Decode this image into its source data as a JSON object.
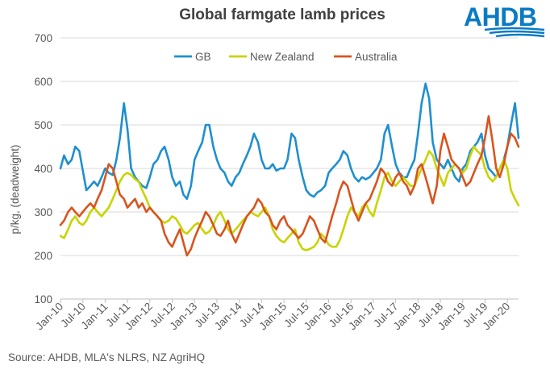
{
  "header": {
    "title": "Global farmgate lamb prices"
  },
  "logo": {
    "text": "AHDB",
    "color": "#0a7bc3"
  },
  "source": "Source: AHDB, MLA's NLRS, NZ AgriHQ",
  "chart_data": {
    "type": "line",
    "title": "Global farmgate lamb prices",
    "xlabel": "",
    "ylabel": "p/kg, (deadweight)",
    "ylim": [
      100,
      700
    ],
    "yticks": [
      100,
      200,
      300,
      400,
      500,
      600,
      700
    ],
    "x_tick_labels": [
      "Jan-10",
      "Jul-10",
      "Jan-11",
      "Jul-11",
      "Jan-12",
      "Jul-12",
      "Jan-13",
      "Jul-13",
      "Jan-14",
      "Jul-14",
      "Jan-15",
      "Jul-15",
      "Jan-16",
      "Jul-16",
      "Jan-17",
      "Jul-17",
      "Jan-18",
      "Jul-18",
      "Jan-19",
      "Jul-19",
      "Jan-20"
    ],
    "x_range": [
      "2010-01",
      "2020-04"
    ],
    "grid": true,
    "legend_position": "top",
    "series": [
      {
        "name": "GB",
        "color": "#1f8fcf",
        "x": [
          2010.0,
          2010.08,
          2010.17,
          2010.25,
          2010.33,
          2010.42,
          2010.5,
          2010.58,
          2010.67,
          2010.75,
          2010.83,
          2010.92,
          2011.0,
          2011.08,
          2011.17,
          2011.25,
          2011.33,
          2011.42,
          2011.5,
          2011.58,
          2011.67,
          2011.75,
          2011.83,
          2011.92,
          2012.0,
          2012.08,
          2012.17,
          2012.25,
          2012.33,
          2012.42,
          2012.5,
          2012.58,
          2012.67,
          2012.75,
          2012.83,
          2012.92,
          2013.0,
          2013.08,
          2013.17,
          2013.25,
          2013.33,
          2013.42,
          2013.5,
          2013.58,
          2013.67,
          2013.75,
          2013.83,
          2013.92,
          2014.0,
          2014.08,
          2014.17,
          2014.25,
          2014.33,
          2014.42,
          2014.5,
          2014.58,
          2014.67,
          2014.75,
          2014.83,
          2014.92,
          2015.0,
          2015.08,
          2015.17,
          2015.25,
          2015.33,
          2015.42,
          2015.5,
          2015.58,
          2015.67,
          2015.75,
          2015.83,
          2015.92,
          2016.0,
          2016.08,
          2016.17,
          2016.25,
          2016.33,
          2016.42,
          2016.5,
          2016.58,
          2016.67,
          2016.75,
          2016.83,
          2016.92,
          2017.0,
          2017.08,
          2017.17,
          2017.25,
          2017.33,
          2017.42,
          2017.5,
          2017.58,
          2017.67,
          2017.75,
          2017.83,
          2017.92,
          2018.0,
          2018.08,
          2018.17,
          2018.25,
          2018.33,
          2018.42,
          2018.5,
          2018.58,
          2018.67,
          2018.75,
          2018.83,
          2018.92,
          2019.0,
          2019.08,
          2019.17,
          2019.25,
          2019.33,
          2019.42,
          2019.5,
          2019.58,
          2019.67,
          2019.75,
          2019.83,
          2019.92,
          2020.0,
          2020.08,
          2020.17,
          2020.25
        ],
        "values": [
          400,
          430,
          410,
          420,
          450,
          440,
          395,
          350,
          360,
          370,
          360,
          380,
          400,
          390,
          385,
          420,
          470,
          550,
          490,
          400,
          380,
          370,
          360,
          355,
          380,
          410,
          420,
          440,
          450,
          420,
          380,
          360,
          370,
          340,
          330,
          360,
          420,
          440,
          460,
          500,
          500,
          450,
          420,
          400,
          390,
          370,
          360,
          380,
          390,
          410,
          430,
          450,
          480,
          460,
          420,
          400,
          400,
          410,
          395,
          400,
          400,
          420,
          480,
          470,
          420,
          380,
          350,
          340,
          335,
          345,
          350,
          360,
          390,
          400,
          410,
          420,
          440,
          430,
          400,
          380,
          370,
          380,
          375,
          380,
          390,
          400,
          420,
          480,
          500,
          450,
          410,
          390,
          380,
          380,
          400,
          420,
          480,
          550,
          595,
          560,
          460,
          420,
          410,
          400,
          420,
          400,
          380,
          370,
          400,
          410,
          440,
          450,
          460,
          480,
          430,
          400,
          390,
          380,
          400,
          420,
          450,
          500,
          550,
          470
        ]
      },
      {
        "name": "New Zealand",
        "color": "#c8d400",
        "x": [
          2010.0,
          2010.08,
          2010.17,
          2010.25,
          2010.33,
          2010.42,
          2010.5,
          2010.58,
          2010.67,
          2010.75,
          2010.83,
          2010.92,
          2011.0,
          2011.08,
          2011.17,
          2011.25,
          2011.33,
          2011.42,
          2011.5,
          2011.58,
          2011.67,
          2011.75,
          2011.83,
          2011.92,
          2012.0,
          2012.08,
          2012.17,
          2012.25,
          2012.33,
          2012.42,
          2012.5,
          2012.58,
          2012.67,
          2012.75,
          2012.83,
          2012.92,
          2013.0,
          2013.08,
          2013.17,
          2013.25,
          2013.33,
          2013.42,
          2013.5,
          2013.58,
          2013.67,
          2013.75,
          2013.83,
          2013.92,
          2014.0,
          2014.08,
          2014.17,
          2014.25,
          2014.33,
          2014.42,
          2014.5,
          2014.58,
          2014.67,
          2014.75,
          2014.83,
          2014.92,
          2015.0,
          2015.08,
          2015.17,
          2015.25,
          2015.33,
          2015.42,
          2015.5,
          2015.58,
          2015.67,
          2015.75,
          2015.83,
          2015.92,
          2016.0,
          2016.08,
          2016.17,
          2016.25,
          2016.33,
          2016.42,
          2016.5,
          2016.58,
          2016.67,
          2016.75,
          2016.83,
          2016.92,
          2017.0,
          2017.08,
          2017.17,
          2017.25,
          2017.33,
          2017.42,
          2017.5,
          2017.58,
          2017.67,
          2017.75,
          2017.83,
          2017.92,
          2018.0,
          2018.08,
          2018.17,
          2018.25,
          2018.33,
          2018.42,
          2018.5,
          2018.58,
          2018.67,
          2018.75,
          2018.83,
          2018.92,
          2019.0,
          2019.08,
          2019.17,
          2019.25,
          2019.33,
          2019.42,
          2019.5,
          2019.58,
          2019.67,
          2019.75,
          2019.83,
          2019.92,
          2020.0,
          2020.08,
          2020.17,
          2020.25
        ],
        "values": [
          245,
          240,
          260,
          280,
          290,
          275,
          270,
          280,
          300,
          310,
          300,
          290,
          300,
          310,
          330,
          350,
          370,
          385,
          390,
          385,
          375,
          370,
          350,
          330,
          310,
          300,
          290,
          280,
          275,
          280,
          290,
          285,
          270,
          255,
          250,
          260,
          270,
          275,
          260,
          250,
          255,
          270,
          290,
          300,
          280,
          260,
          250,
          260,
          270,
          280,
          290,
          300,
          295,
          290,
          300,
          310,
          290,
          260,
          245,
          235,
          230,
          240,
          250,
          260,
          230,
          215,
          212,
          215,
          220,
          230,
          250,
          240,
          225,
          220,
          220,
          235,
          260,
          290,
          310,
          300,
          290,
          310,
          320,
          300,
          290,
          320,
          350,
          380,
          390,
          370,
          360,
          370,
          380,
          370,
          360,
          360,
          380,
          400,
          420,
          440,
          430,
          400,
          380,
          360,
          390,
          400,
          410,
          400,
          390,
          400,
          430,
          450,
          440,
          430,
          400,
          380,
          370,
          380,
          400,
          420,
          400,
          350,
          330,
          315
        ]
      },
      {
        "name": "Australia",
        "color": "#d9541e",
        "x": [
          2010.0,
          2010.08,
          2010.17,
          2010.25,
          2010.33,
          2010.42,
          2010.5,
          2010.58,
          2010.67,
          2010.75,
          2010.83,
          2010.92,
          2011.0,
          2011.08,
          2011.17,
          2011.25,
          2011.33,
          2011.42,
          2011.5,
          2011.58,
          2011.67,
          2011.75,
          2011.83,
          2011.92,
          2012.0,
          2012.08,
          2012.17,
          2012.25,
          2012.33,
          2012.42,
          2012.5,
          2012.58,
          2012.67,
          2012.75,
          2012.83,
          2012.92,
          2013.0,
          2013.08,
          2013.17,
          2013.25,
          2013.33,
          2013.42,
          2013.5,
          2013.58,
          2013.67,
          2013.75,
          2013.83,
          2013.92,
          2014.0,
          2014.08,
          2014.17,
          2014.25,
          2014.33,
          2014.42,
          2014.5,
          2014.58,
          2014.67,
          2014.75,
          2014.83,
          2014.92,
          2015.0,
          2015.08,
          2015.17,
          2015.25,
          2015.33,
          2015.42,
          2015.5,
          2015.58,
          2015.67,
          2015.75,
          2015.83,
          2015.92,
          2016.0,
          2016.08,
          2016.17,
          2016.25,
          2016.33,
          2016.42,
          2016.5,
          2016.58,
          2016.67,
          2016.75,
          2016.83,
          2016.92,
          2017.0,
          2017.08,
          2017.17,
          2017.25,
          2017.33,
          2017.42,
          2017.5,
          2017.58,
          2017.67,
          2017.75,
          2017.83,
          2017.92,
          2018.0,
          2018.08,
          2018.17,
          2018.25,
          2018.33,
          2018.42,
          2018.5,
          2018.58,
          2018.67,
          2018.75,
          2018.83,
          2018.92,
          2019.0,
          2019.08,
          2019.17,
          2019.25,
          2019.33,
          2019.42,
          2019.5,
          2019.58,
          2019.67,
          2019.75,
          2019.83,
          2019.92,
          2020.0,
          2020.08,
          2020.17,
          2020.25
        ],
        "values": [
          270,
          280,
          300,
          310,
          300,
          290,
          300,
          310,
          320,
          310,
          330,
          350,
          380,
          410,
          400,
          370,
          340,
          330,
          310,
          320,
          330,
          310,
          320,
          300,
          310,
          300,
          290,
          280,
          250,
          230,
          220,
          240,
          260,
          230,
          200,
          215,
          240,
          260,
          280,
          300,
          290,
          270,
          250,
          245,
          260,
          280,
          250,
          230,
          250,
          270,
          290,
          300,
          310,
          330,
          320,
          300,
          290,
          270,
          260,
          280,
          290,
          270,
          260,
          250,
          240,
          250,
          270,
          290,
          280,
          260,
          240,
          230,
          260,
          290,
          320,
          350,
          370,
          360,
          330,
          300,
          280,
          300,
          320,
          330,
          350,
          370,
          400,
          390,
          370,
          360,
          380,
          390,
          370,
          360,
          340,
          360,
          400,
          410,
          380,
          350,
          320,
          360,
          440,
          480,
          450,
          420,
          410,
          400,
          380,
          360,
          370,
          390,
          410,
          430,
          470,
          520,
          460,
          400,
          380,
          410,
          450,
          480,
          470,
          450
        ]
      }
    ]
  }
}
